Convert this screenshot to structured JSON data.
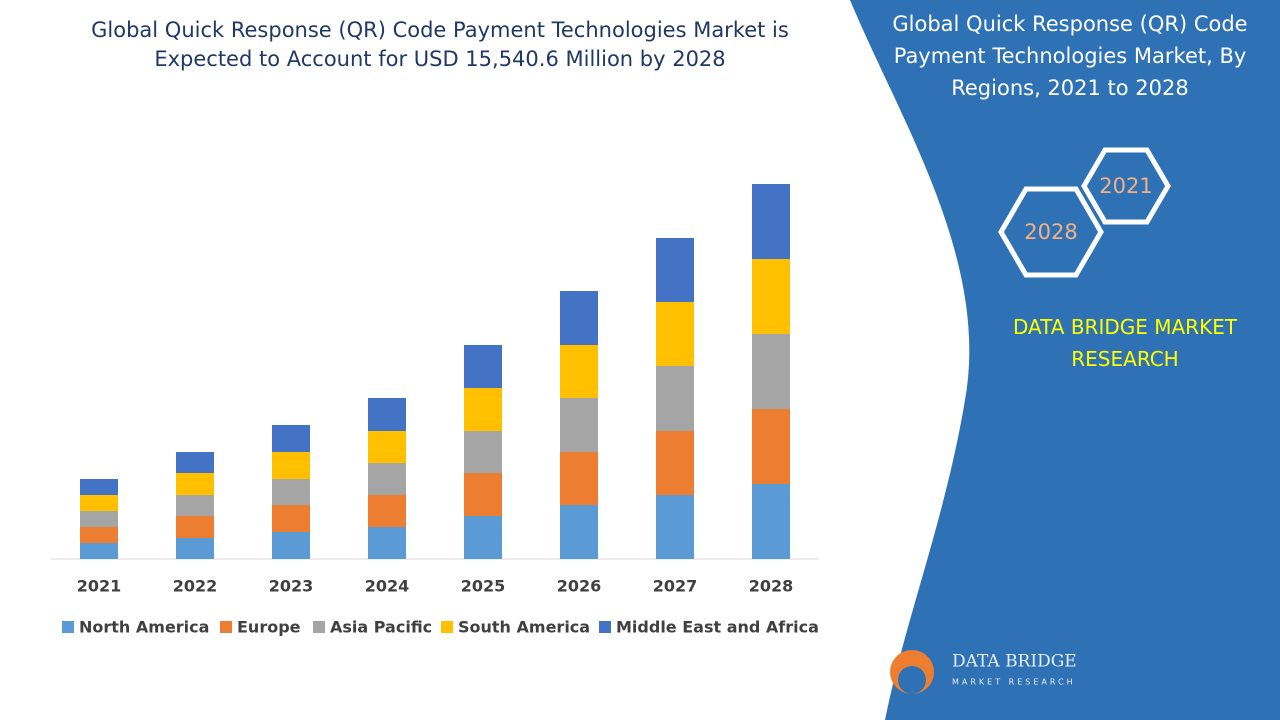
{
  "chart_data": {
    "type": "bar",
    "stacked": true,
    "title": "Global Quick Response (QR) Code Payment Technologies Market is Expected to Account for USD 15,540.6 Million by 2028",
    "categories": [
      "2021",
      "2022",
      "2023",
      "2024",
      "2025",
      "2026",
      "2027",
      "2028"
    ],
    "series": [
      {
        "name": "North America",
        "color": "#5b9bd5",
        "values": [
          16,
          21,
          27,
          32,
          43,
          54,
          64,
          75
        ]
      },
      {
        "name": "Europe",
        "color": "#ed7d31",
        "values": [
          16,
          22,
          27,
          32,
          43,
          53,
          64,
          75
        ]
      },
      {
        "name": "Asia Pacific",
        "color": "#a5a5a5",
        "values": [
          16,
          21,
          26,
          32,
          42,
          54,
          65,
          75
        ]
      },
      {
        "name": "South America",
        "color": "#ffc000",
        "values": [
          16,
          22,
          27,
          32,
          43,
          53,
          64,
          75
        ]
      },
      {
        "name": "Middle East and Africa",
        "color": "#4472c4",
        "values": [
          16,
          21,
          27,
          33,
          43,
          54,
          64,
          75
        ]
      }
    ],
    "ylim": [
      0,
      400
    ],
    "legend": "bottom"
  },
  "side_panel": {
    "title": "Global Quick Response (QR) Code Payment Technologies Market, By Regions, 2021 to 2028",
    "hexagons": [
      "2021",
      "2028"
    ],
    "brand": "DATA BRIDGE MARKET RESEARCH"
  },
  "logo": {
    "name": "DATA BRIDGE",
    "tagline": "MARKET RESEARCH"
  }
}
